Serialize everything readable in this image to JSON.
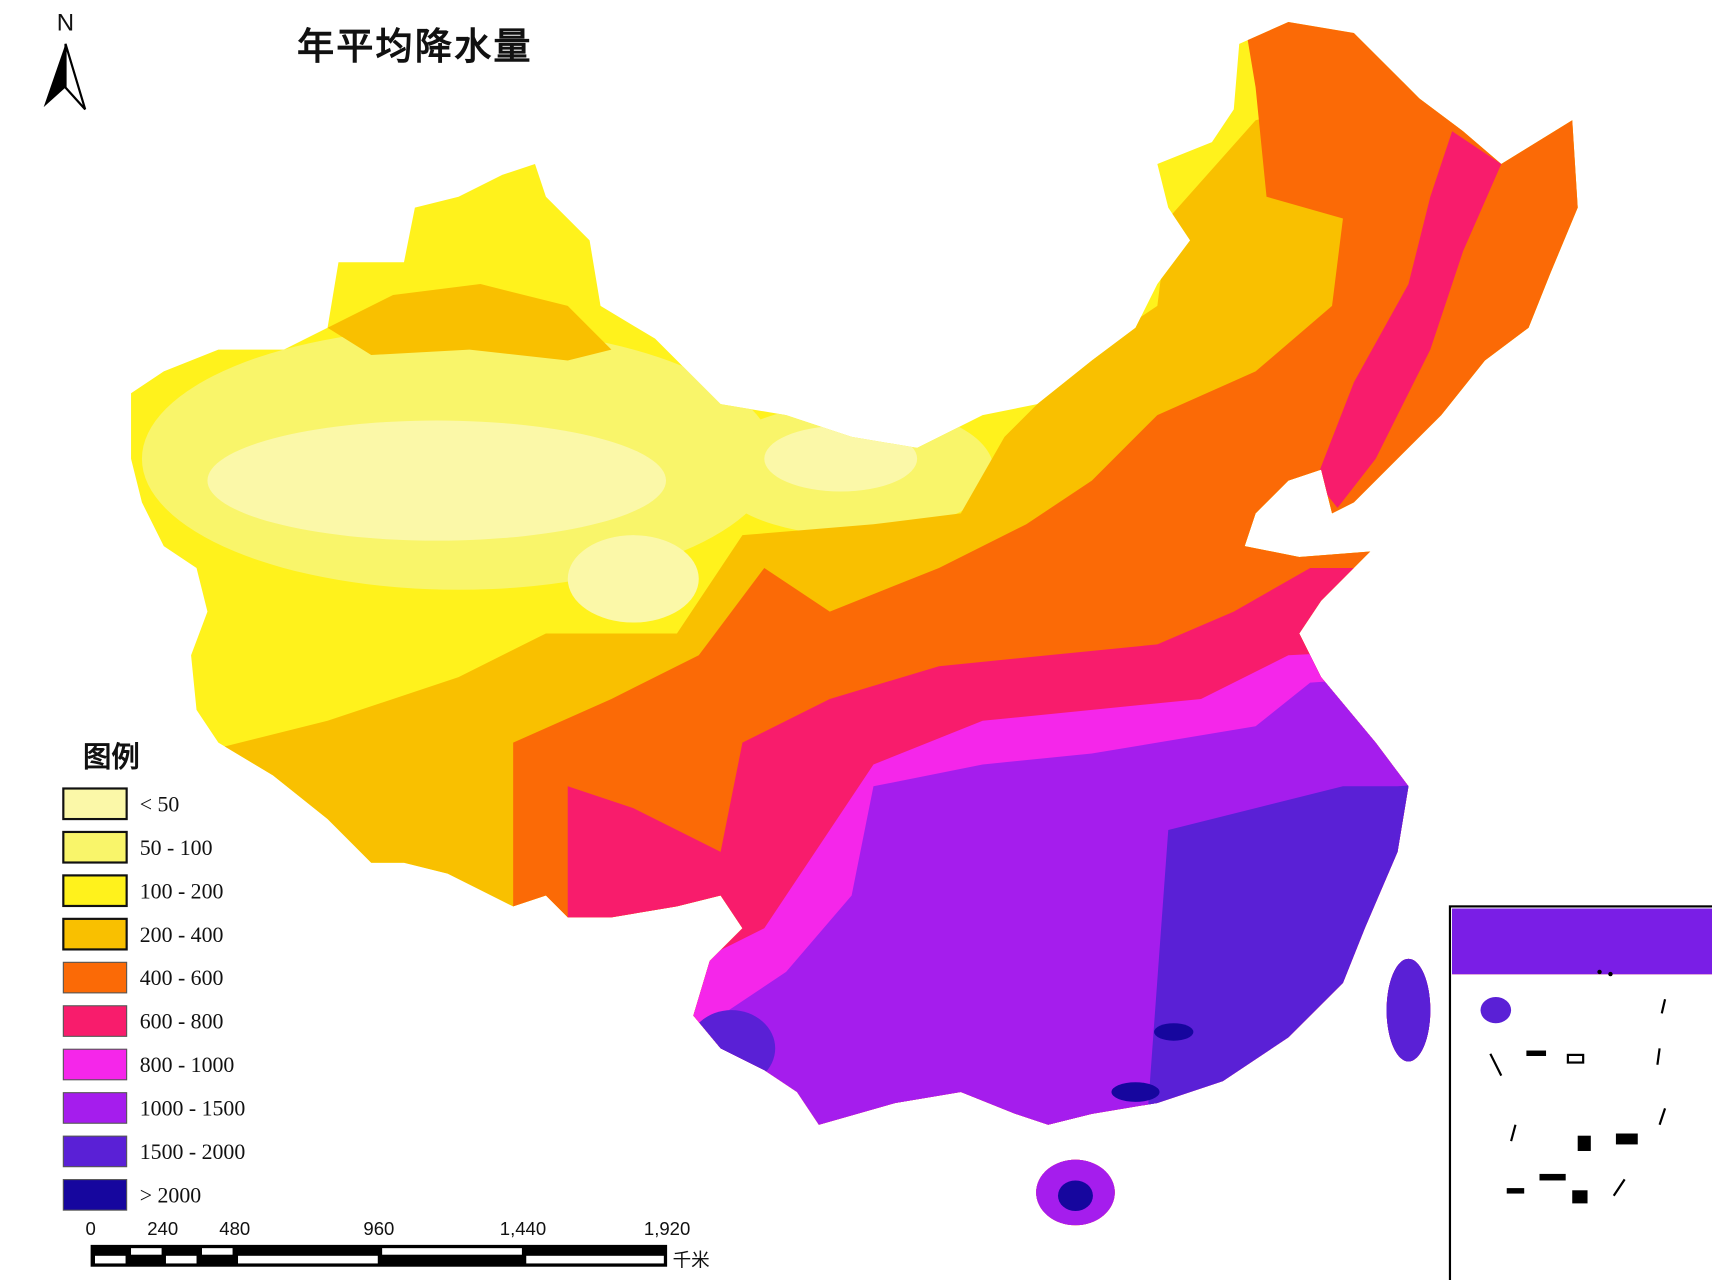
{
  "map": {
    "title": "年平均降水量",
    "north_label": "N",
    "legend": {
      "title": "图例",
      "items": [
        {
          "label": "< 50",
          "color": "#fbf8a8"
        },
        {
          "label": "50 - 100",
          "color": "#f9f56a"
        },
        {
          "label": "100 - 200",
          "color": "#fff21c"
        },
        {
          "label": "200 - 400",
          "color": "#f9c000"
        },
        {
          "label": "400 - 600",
          "color": "#fb6a06"
        },
        {
          "label": "600 - 800",
          "color": "#f81c6c"
        },
        {
          "label": "800 - 1000",
          "color": "#f526ea"
        },
        {
          "label": "1000 - 1500",
          "color": "#a51ded"
        },
        {
          "label": "1500 - 2000",
          "color": "#5a20d6"
        },
        {
          "label": "> 2000",
          "color": "#16069e"
        }
      ]
    },
    "scale_bar": {
      "ticks": [
        "0",
        "240",
        "480",
        "960",
        "1,440",
        "1,920"
      ],
      "unit": "千米"
    }
  }
}
